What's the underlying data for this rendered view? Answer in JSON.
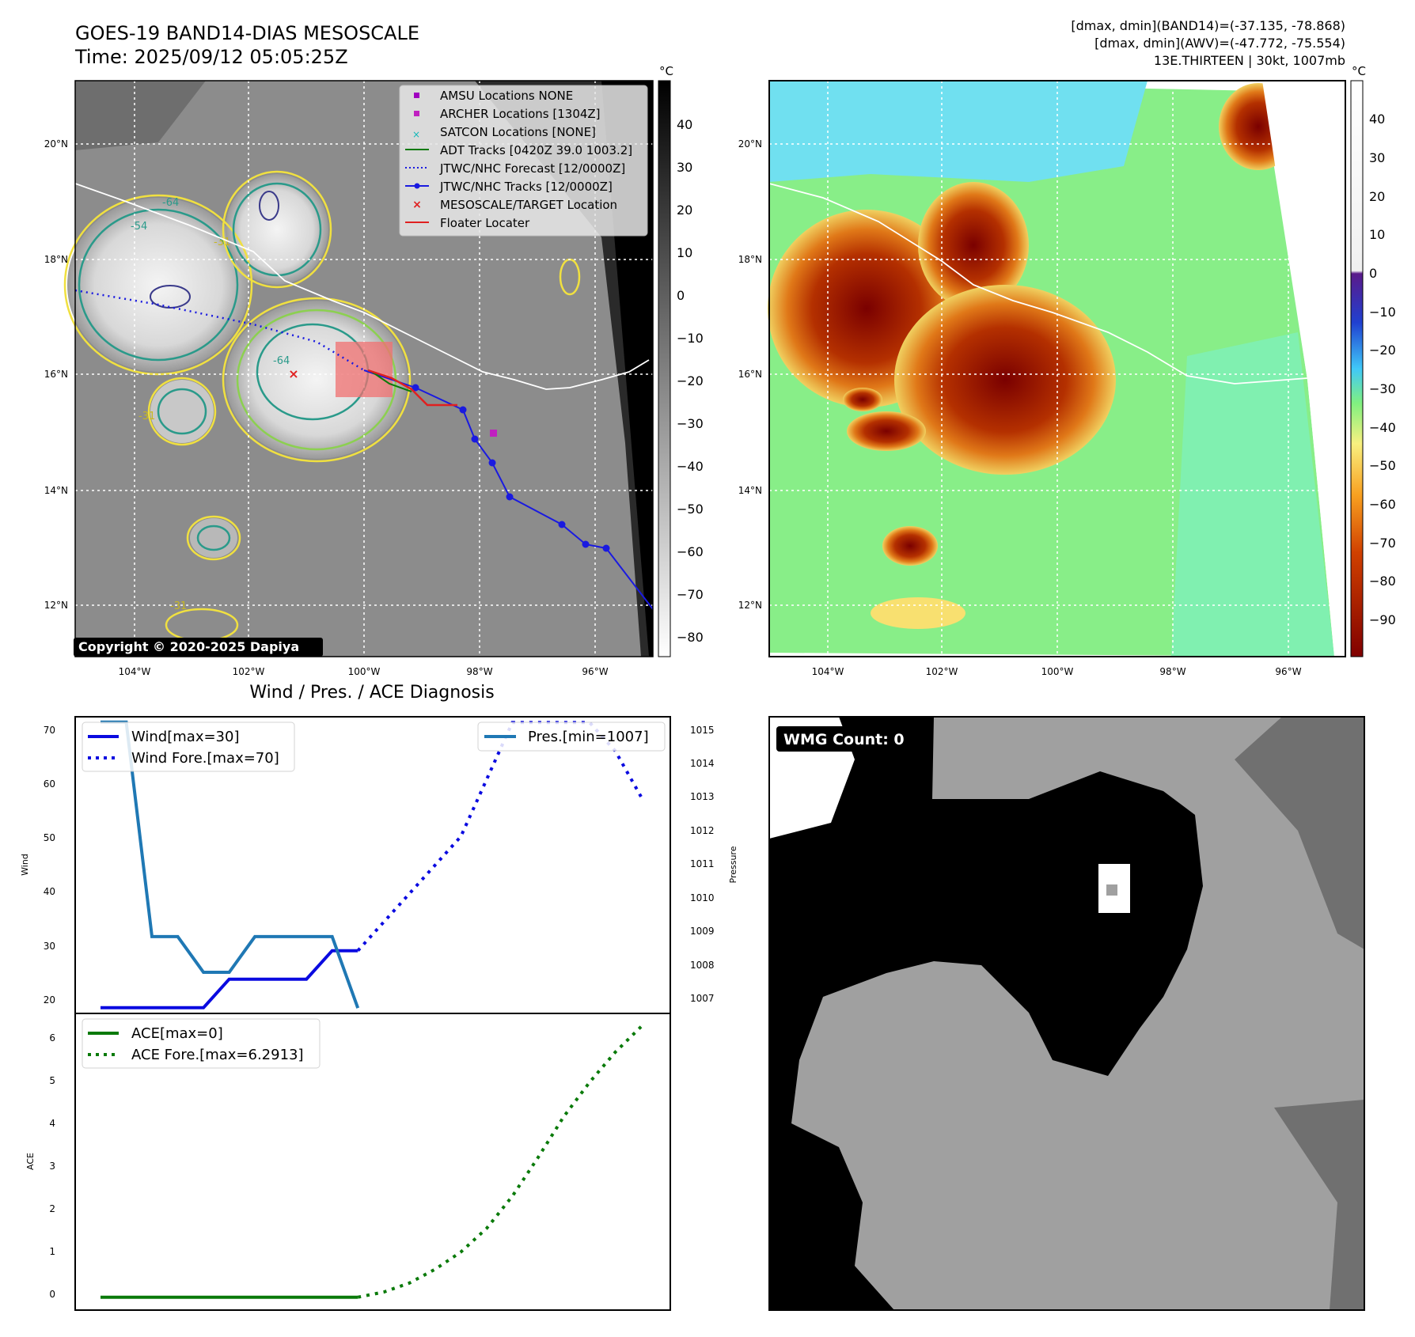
{
  "header": {
    "title": "GOES-19 BAND14-DIAS MESOSCALE",
    "time": "Time: 2025/09/12 05:05:25Z",
    "stats_band14": "[dmax, dmin](BAND14)=(-37.135, -78.868)",
    "stats_awv": "[dmax, dmin](AWV)=(-47.772, -75.554)",
    "storm": "13E.THIRTEEN | 30kt, 1007mb"
  },
  "map": {
    "lon_ticks": [
      "104°W",
      "102°W",
      "100°W",
      "98°W",
      "96°W"
    ],
    "lat_ticks": [
      "20°N",
      "18°N",
      "16°N",
      "14°N",
      "12°N"
    ],
    "copyright": "Copyright © 2020-2025 Dapiya",
    "contour_labels": [
      "-64",
      "-54",
      "-31",
      "-64",
      "-31",
      "-31"
    ],
    "legend": [
      "AMSU Locations NONE",
      "ARCHER Locations [1304Z]",
      "SATCON Locations [NONE]",
      "ADT Tracks [0420Z 39.0 1003.2]",
      "JTWC/NHC Forecast [12/0000Z]",
      "JTWC/NHC Tracks [12/0000Z]",
      "MESOSCALE/TARGET Location",
      "Floater Locater"
    ],
    "colorbar_left": {
      "unit": "°C",
      "ticks": [
        "40",
        "30",
        "20",
        "10",
        "0",
        "−10",
        "−20",
        "−30",
        "−40",
        "−50",
        "−60",
        "−70",
        "−80"
      ]
    },
    "colorbar_right": {
      "unit": "°C",
      "ticks": [
        "40",
        "30",
        "20",
        "10",
        "0",
        "−10",
        "−20",
        "−30",
        "−40",
        "−50",
        "−60",
        "−70",
        "−80",
        "−90"
      ]
    }
  },
  "diagnosis": {
    "title": "Wind / Pres. / ACE Diagnosis",
    "wind_ylabel": "Wind",
    "pres_ylabel": "Pressure",
    "ace_ylabel": "ACE",
    "wind_ticks": [
      "70",
      "60",
      "50",
      "40",
      "30",
      "20"
    ],
    "pres_ticks": [
      "1015",
      "1014",
      "1013",
      "1012",
      "1011",
      "1010",
      "1009",
      "1008",
      "1007"
    ],
    "ace_ticks": [
      "6",
      "5",
      "4",
      "3",
      "2",
      "1",
      "0"
    ],
    "legend_wind": "Wind[max=30]",
    "legend_wind_fore": "Wind Fore.[max=70]",
    "legend_pres": "Pres.[min=1007]",
    "legend_ace": "ACE[max=0]",
    "legend_ace_fore": "ACE Fore.[max=6.2913]"
  },
  "wmg": {
    "label": "WMG Count: 0"
  },
  "chart_data": [
    {
      "type": "line",
      "title": "Wind / Pres. / ACE Diagnosis",
      "ylabel": "Wind",
      "ylim": [
        19,
        71
      ],
      "series": [
        {
          "name": "Wind[max=30]",
          "x": [
            0,
            1,
            2,
            3,
            4,
            5,
            6,
            7,
            8,
            9,
            10
          ],
          "values": [
            20,
            20,
            20,
            20,
            20,
            25,
            25,
            25,
            25,
            30,
            30
          ]
        },
        {
          "name": "Wind Fore.[max=70]",
          "x": [
            10,
            11,
            12,
            13,
            14,
            15,
            16,
            17,
            18,
            19,
            20,
            21
          ],
          "values": [
            30,
            35,
            40,
            45,
            50,
            60,
            70,
            70,
            70,
            70,
            65,
            57
          ]
        }
      ]
    },
    {
      "type": "line",
      "ylabel": "Pressure",
      "ylim": [
        1006.85,
        1015.15
      ],
      "series": [
        {
          "name": "Pres.[min=1007]",
          "x": [
            0,
            1,
            2,
            3,
            4,
            5,
            6,
            7,
            8,
            9,
            10
          ],
          "values": [
            1015,
            1015,
            1009,
            1009,
            1008,
            1008,
            1009,
            1009,
            1009,
            1009,
            1007
          ]
        }
      ]
    },
    {
      "type": "line",
      "ylabel": "ACE",
      "ylim": [
        -0.3,
        6.6
      ],
      "series": [
        {
          "name": "ACE[max=0]",
          "x": [
            0,
            10
          ],
          "values": [
            0,
            0
          ]
        },
        {
          "name": "ACE Fore.[max=6.2913]",
          "x": [
            10,
            11,
            12,
            13,
            14,
            15,
            16,
            17,
            18,
            19,
            20,
            21
          ],
          "values": [
            0,
            0.12,
            0.33,
            0.65,
            1.05,
            1.6,
            2.35,
            3.25,
            4.2,
            5.0,
            5.7,
            6.2913
          ]
        }
      ]
    }
  ]
}
